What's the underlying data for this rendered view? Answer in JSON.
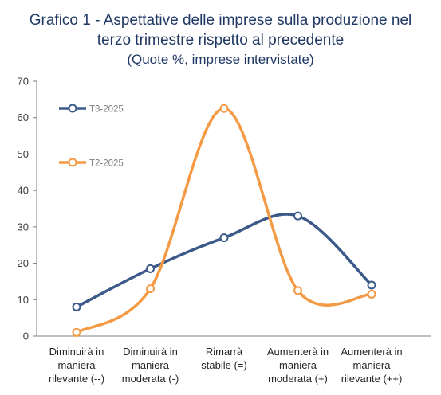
{
  "chart_data": {
    "type": "line",
    "title_line1": "Grafico 1 - Aspettative delle imprese sulla produzione nel",
    "title_line2": "terzo trimestre rispetto al precedente",
    "subtitle": "(Quote %, imprese intervistate)",
    "categories": [
      [
        "Diminuirà in",
        "maniera",
        "rilevante (--)"
      ],
      [
        "Diminuirà in",
        "maniera",
        "moderata (-)"
      ],
      [
        "Rimarrà",
        "stabile (=)"
      ],
      [
        "Aumenterà in",
        "maniera",
        "moderata (+)"
      ],
      [
        "Aumenterà in",
        "maniera",
        "rilevante (++)"
      ]
    ],
    "ylim": [
      0,
      70
    ],
    "yticks": [
      "0",
      "10",
      "20",
      "30",
      "40",
      "50",
      "60",
      "70"
    ],
    "series": [
      {
        "name": "T3-2025",
        "values": [
          8,
          18.5,
          27,
          33,
          14
        ],
        "color": "#3b5a8a"
      },
      {
        "name": "T2-2025",
        "values": [
          1,
          13,
          62.5,
          12.5,
          11.5
        ],
        "color": "#f59a44"
      }
    ],
    "smooth": true,
    "grid": false,
    "legend_position": "top-left"
  }
}
